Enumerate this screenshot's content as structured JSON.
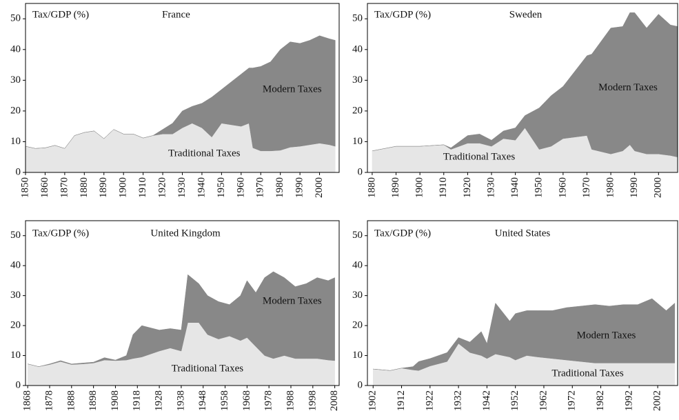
{
  "chart_data": [
    {
      "type": "area",
      "title": "France",
      "ylabel": "Tax/GDP (%)",
      "x": [
        1850,
        1855,
        1860,
        1865,
        1870,
        1875,
        1880,
        1885,
        1890,
        1895,
        1900,
        1905,
        1910,
        1915,
        1920,
        1925,
        1930,
        1935,
        1940,
        1945,
        1950,
        1955,
        1960,
        1964,
        1966,
        1970,
        1975,
        1980,
        1985,
        1990,
        1995,
        2000,
        2005,
        2008
      ],
      "series": [
        {
          "name": "Traditional Taxes",
          "color": "#e6e6e6",
          "values": [
            8.5,
            7.8,
            8,
            8.8,
            7.8,
            12,
            13,
            13.5,
            11,
            14,
            12.5,
            12.5,
            11.2,
            12,
            12.5,
            12.5,
            14.5,
            16,
            14.5,
            11.5,
            16,
            15.5,
            15,
            16,
            8,
            7,
            7,
            7.2,
            8.2,
            8.5,
            9,
            9.5,
            9,
            8.5
          ]
        },
        {
          "name": "Modern Taxes",
          "color": "#888888",
          "values": [
            0,
            0,
            0,
            0,
            0,
            0,
            0,
            0,
            0,
            0,
            0,
            0,
            0,
            0,
            1.5,
            3.5,
            5.5,
            5.5,
            8,
            13,
            11,
            14,
            17,
            18,
            26,
            27.5,
            29,
            32.8,
            34.3,
            33.5,
            34,
            35,
            34.5,
            34.5
          ]
        }
      ],
      "xlim": [
        1850,
        2010
      ],
      "xticks": [
        1850,
        1860,
        1870,
        1880,
        1890,
        1900,
        1910,
        1920,
        1930,
        1940,
        1950,
        1960,
        1970,
        1980,
        1990,
        2000
      ],
      "ylim": [
        0,
        55
      ],
      "yticks": [
        0,
        10,
        20,
        30,
        40,
        50
      ]
    },
    {
      "type": "area",
      "title": "Sweden",
      "ylabel": "Tax/GDP (%)",
      "x": [
        1880,
        1890,
        1900,
        1910,
        1913,
        1920,
        1925,
        1930,
        1935,
        1940,
        1944,
        1950,
        1955,
        1960,
        1965,
        1970,
        1972,
        1980,
        1985,
        1988,
        1990,
        1995,
        2000,
        2005,
        2008
      ],
      "series": [
        {
          "name": "Traditional Taxes",
          "color": "#e6e6e6",
          "values": [
            7,
            8.5,
            8.5,
            9,
            7.5,
            9.5,
            9.5,
            8.5,
            11,
            10.5,
            14.5,
            7.5,
            8.5,
            11,
            11.5,
            12,
            7.5,
            6,
            7,
            9,
            7,
            6,
            6,
            5.5,
            5
          ]
        },
        {
          "name": "Modern Taxes",
          "color": "#888888",
          "values": [
            0,
            0,
            0,
            0,
            0.5,
            2.5,
            3,
            2,
            2.5,
            4,
            4,
            13.5,
            16.5,
            17,
            21.5,
            26,
            31,
            41,
            40.5,
            43,
            45,
            41,
            45.5,
            42.5,
            42.5
          ]
        }
      ],
      "xlim": [
        1878,
        2008
      ],
      "xticks": [
        1880,
        1890,
        1900,
        1910,
        1920,
        1930,
        1940,
        1950,
        1960,
        1970,
        1980,
        1990,
        2000
      ],
      "ylim": [
        0,
        55
      ],
      "yticks": [
        0,
        10,
        20,
        30,
        40,
        50
      ]
    },
    {
      "type": "area",
      "title": "United Kingdom",
      "ylabel": "Tax/GDP (%)",
      "x": [
        1868,
        1873,
        1878,
        1883,
        1888,
        1893,
        1898,
        1903,
        1908,
        1913,
        1916,
        1920,
        1928,
        1933,
        1938,
        1941,
        1946,
        1950,
        1955,
        1960,
        1965,
        1968,
        1972,
        1976,
        1980,
        1985,
        1990,
        1995,
        2000,
        2005,
        2008
      ],
      "series": [
        {
          "name": "Traditional Taxes",
          "color": "#e6e6e6",
          "values": [
            7.2,
            6.3,
            7,
            8,
            7,
            7.2,
            7.5,
            8.5,
            8.3,
            8.5,
            9,
            9.5,
            11.5,
            12.5,
            11.5,
            21,
            21,
            17,
            15.5,
            16.5,
            15,
            16,
            13,
            10,
            9,
            10,
            9,
            9,
            9,
            8.5,
            8.3
          ]
        },
        {
          "name": "Modern Taxes",
          "color": "#888888",
          "values": [
            0,
            0,
            0.2,
            0.3,
            0.2,
            0.3,
            0.3,
            0.8,
            0.2,
            1.5,
            8,
            10.5,
            7,
            6.5,
            7,
            16,
            13,
            13,
            12.5,
            10.5,
            15,
            19,
            18,
            26,
            29,
            26,
            24,
            25,
            27,
            26.5,
            27.7
          ]
        }
      ],
      "xlim": [
        1867,
        2010
      ],
      "xticks": [
        1868,
        1878,
        1888,
        1898,
        1908,
        1918,
        1928,
        1938,
        1948,
        1958,
        1968,
        1978,
        1988,
        1998,
        2008
      ],
      "ylim": [
        0,
        55
      ],
      "yticks": [
        0,
        10,
        20,
        30,
        40,
        50
      ]
    },
    {
      "type": "area",
      "title": "United States",
      "ylabel": "Tax/GDP (%)",
      "x": [
        1902,
        1908,
        1912,
        1916,
        1918,
        1922,
        1928,
        1932,
        1936,
        1940,
        1942,
        1945,
        1950,
        1952,
        1956,
        1960,
        1965,
        1970,
        1975,
        1980,
        1985,
        1990,
        1995,
        2000,
        2005,
        2008
      ],
      "series": [
        {
          "name": "Traditional Taxes",
          "color": "#e6e6e6",
          "values": [
            5.5,
            5,
            5.8,
            5.2,
            5,
            6.5,
            8,
            14,
            11,
            10,
            9,
            10.5,
            9.5,
            8.5,
            10,
            9.5,
            9,
            8.5,
            8,
            7.5,
            7.5,
            7.5,
            7.5,
            7.5,
            7.5,
            7.5
          ]
        },
        {
          "name": "Modern Taxes",
          "color": "#888888",
          "values": [
            0,
            0,
            0,
            1.1,
            3,
            2.5,
            3,
            2,
            3.5,
            8,
            5,
            17,
            12,
            15.5,
            15,
            15.5,
            16,
            17.5,
            18.5,
            19.5,
            19,
            19.5,
            19.5,
            21.5,
            17.5,
            20
          ]
        }
      ],
      "xlim": [
        1900,
        2009
      ],
      "xticks": [
        1902,
        1912,
        1922,
        1932,
        1942,
        1952,
        1962,
        1972,
        1982,
        1992,
        2002
      ],
      "ylim": [
        0,
        55
      ],
      "yticks": [
        0,
        10,
        20,
        30,
        40,
        50
      ]
    }
  ]
}
